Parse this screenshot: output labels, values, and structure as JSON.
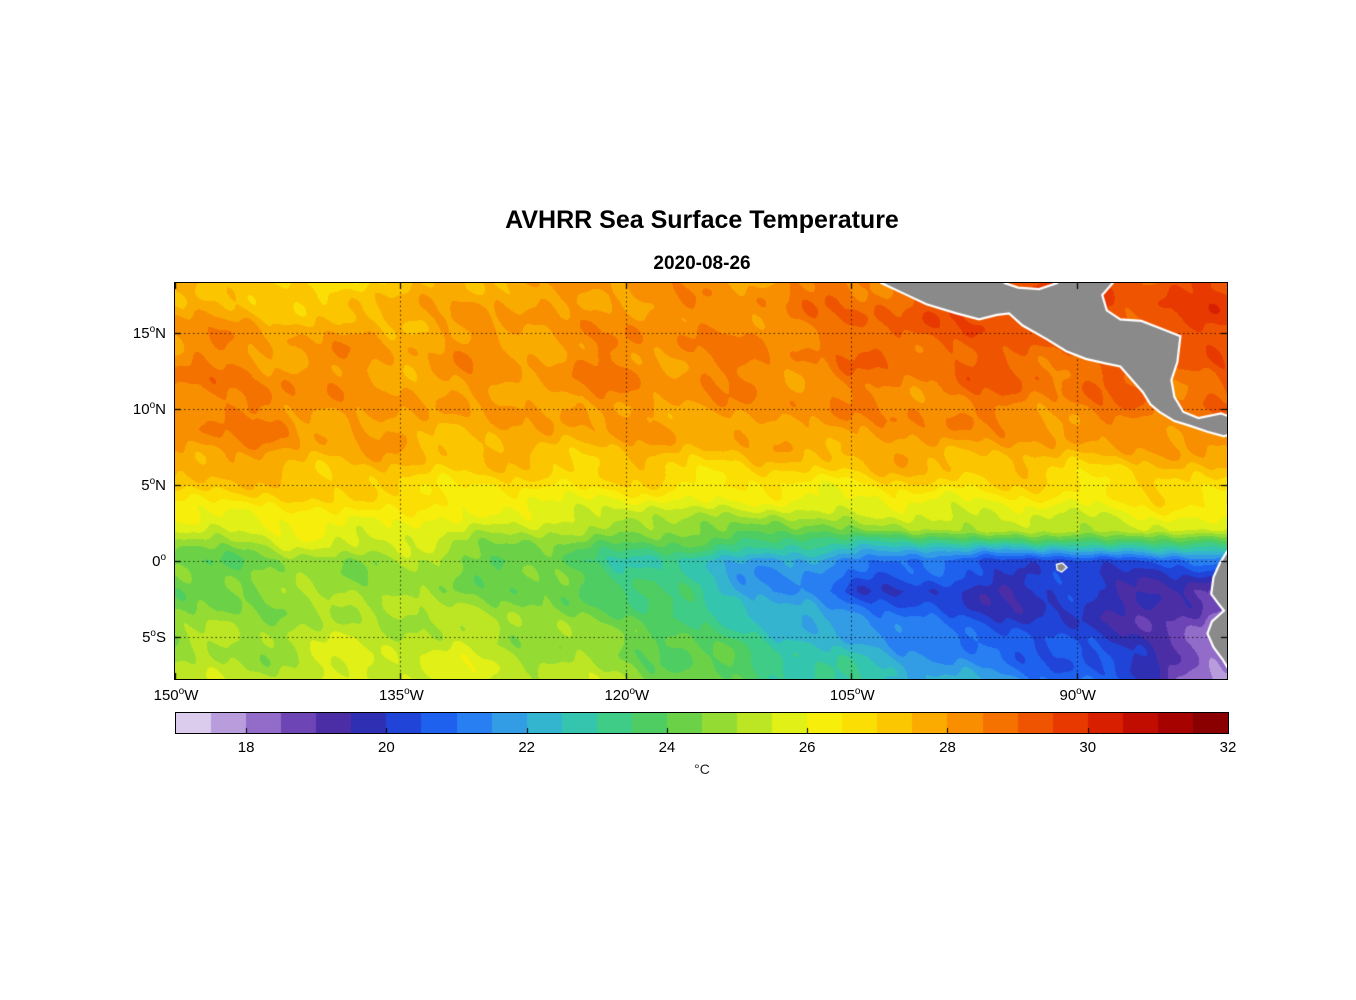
{
  "chart_data": {
    "type": "heatmap",
    "title": "AVHRR Sea Surface Temperature",
    "subtitle": "2020-08-26",
    "x_axis": {
      "range": [
        -150,
        -80
      ],
      "deg_symbol": "o",
      "label_ticks": [
        {
          "lon": -150,
          "num": "150",
          "hem": "W"
        },
        {
          "lon": -135,
          "num": "135",
          "hem": "W"
        },
        {
          "lon": -120,
          "num": "120",
          "hem": "W"
        },
        {
          "lon": -105,
          "num": "105",
          "hem": "W"
        },
        {
          "lon": -90,
          "num": "90",
          "hem": "W"
        }
      ]
    },
    "y_axis": {
      "range": [
        -7.8,
        18.3
      ],
      "deg_symbol": "o",
      "label_ticks": [
        {
          "lat": 15,
          "num": "15",
          "hem": "N"
        },
        {
          "lat": 10,
          "num": "10",
          "hem": "N"
        },
        {
          "lat": 5,
          "num": "5",
          "hem": "N"
        },
        {
          "lat": 0,
          "num": "0",
          "hem": ""
        },
        {
          "lat": -5,
          "num": "5",
          "hem": "S"
        }
      ]
    },
    "grid_lons": [
      -135,
      -120,
      -105,
      -90
    ],
    "grid_lats": [
      15,
      10,
      5,
      0,
      -5
    ],
    "colorbar": {
      "min": 17,
      "max": 32,
      "band_step": 0.5,
      "ticks": [
        18,
        20,
        22,
        24,
        26,
        28,
        30,
        32
      ],
      "label": "°C"
    },
    "colormap_stops": [
      [
        17.0,
        "#E9E1F4"
      ],
      [
        17.5,
        "#CDB4E6"
      ],
      [
        18.0,
        "#A583D2"
      ],
      [
        18.5,
        "#7F55BE"
      ],
      [
        19.0,
        "#5B34AC"
      ],
      [
        19.5,
        "#3B28A0"
      ],
      [
        20.0,
        "#2336C6"
      ],
      [
        20.5,
        "#1C52E8"
      ],
      [
        21.0,
        "#1F70F5"
      ],
      [
        21.5,
        "#2F8EEE"
      ],
      [
        22.0,
        "#35A9DC"
      ],
      [
        22.5,
        "#33C0C2"
      ],
      [
        23.0,
        "#36CA9C"
      ],
      [
        23.5,
        "#46CD72"
      ],
      [
        24.0,
        "#57CD53"
      ],
      [
        24.5,
        "#7FD73D"
      ],
      [
        25.0,
        "#A9E12A"
      ],
      [
        25.5,
        "#CFEA1C"
      ],
      [
        26.0,
        "#F3F50F"
      ],
      [
        26.5,
        "#FBE807"
      ],
      [
        27.0,
        "#FBD400"
      ],
      [
        27.5,
        "#FBB900"
      ],
      [
        28.0,
        "#FA9D00"
      ],
      [
        28.5,
        "#F78100"
      ],
      [
        29.0,
        "#F26300"
      ],
      [
        29.5,
        "#EC4700"
      ],
      [
        30.0,
        "#E22B00"
      ],
      [
        30.5,
        "#CE1400"
      ],
      [
        31.0,
        "#B40500"
      ],
      [
        31.5,
        "#970000"
      ],
      [
        32.0,
        "#7D0000"
      ]
    ],
    "sst_grid": {
      "units": "degC",
      "lons": [
        -150,
        -145,
        -140,
        -135,
        -130,
        -125,
        -120,
        -115,
        -110,
        -105,
        -100,
        -95,
        -90,
        -85,
        -80
      ],
      "lats": [
        18.3,
        16,
        14,
        12,
        10,
        8,
        6,
        4,
        2,
        0,
        -2,
        -4,
        -6,
        -7.8
      ],
      "values": [
        [
          27.6,
          27.0,
          26.5,
          27.4,
          27.8,
          28.0,
          28.1,
          28.0,
          28.3,
          28.7,
          29.1,
          29.4,
          29.6,
          29.5,
          29.4
        ],
        [
          27.9,
          27.8,
          27.4,
          27.8,
          28.0,
          28.0,
          28.2,
          28.4,
          28.4,
          28.9,
          29.2,
          29.4,
          29.3,
          29.4,
          29.5
        ],
        [
          28.2,
          28.3,
          28.0,
          28.0,
          28.0,
          28.2,
          28.3,
          28.5,
          28.4,
          28.7,
          29.0,
          29.1,
          29.0,
          29.2,
          29.3
        ],
        [
          28.5,
          28.4,
          28.2,
          28.0,
          28.1,
          28.2,
          28.5,
          28.3,
          28.5,
          28.5,
          28.7,
          29.0,
          28.8,
          29.0,
          29.1
        ],
        [
          28.4,
          28.6,
          28.2,
          28.0,
          27.9,
          28.0,
          28.2,
          28.0,
          28.2,
          28.3,
          28.5,
          28.5,
          28.5,
          28.7,
          28.9
        ],
        [
          28.6,
          28.3,
          28.0,
          27.8,
          27.6,
          27.8,
          27.8,
          27.8,
          27.8,
          28.0,
          28.2,
          28.0,
          27.9,
          28.2,
          28.4
        ],
        [
          27.8,
          27.6,
          27.5,
          27.3,
          27.1,
          27.0,
          27.2,
          27.0,
          27.0,
          27.2,
          27.4,
          27.3,
          27.0,
          27.2,
          27.5
        ],
        [
          26.6,
          26.8,
          27.0,
          26.5,
          26.3,
          26.2,
          26.1,
          26.0,
          25.9,
          26.0,
          26.2,
          26.3,
          26.2,
          26.5,
          26.7
        ],
        [
          25.2,
          25.6,
          26.0,
          26.0,
          25.5,
          25.0,
          24.6,
          24.5,
          24.3,
          24.5,
          24.8,
          25.0,
          25.2,
          25.5,
          25.9
        ],
        [
          24.0,
          24.4,
          24.8,
          24.8,
          24.3,
          23.9,
          23.3,
          22.6,
          21.8,
          21.2,
          20.9,
          20.6,
          20.3,
          20.6,
          21.0
        ],
        [
          24.2,
          24.5,
          24.8,
          24.8,
          24.6,
          24.2,
          23.6,
          22.8,
          21.5,
          20.6,
          20.0,
          19.7,
          19.8,
          19.6,
          18.6
        ],
        [
          24.5,
          24.8,
          25.0,
          25.2,
          25.0,
          24.7,
          24.2,
          23.4,
          22.4,
          21.6,
          20.8,
          20.2,
          20.0,
          19.3,
          17.8
        ],
        [
          24.8,
          25.0,
          25.3,
          25.5,
          25.3,
          25.0,
          24.5,
          23.9,
          23.1,
          22.3,
          21.6,
          20.9,
          20.5,
          19.6,
          17.4
        ],
        [
          25.1,
          25.2,
          25.5,
          25.8,
          25.5,
          25.2,
          24.8,
          24.3,
          23.5,
          22.8,
          22.1,
          21.4,
          21.0,
          19.9,
          17.6
        ]
      ]
    },
    "land": {
      "fill": "#8a8a8a",
      "coast": "#ffffff",
      "polygons": {
        "central_america": [
          [
            -104,
            19.5
          ],
          [
            -103,
            18.3
          ],
          [
            -101.5,
            17.6
          ],
          [
            -100,
            16.9
          ],
          [
            -98,
            16.3
          ],
          [
            -96.5,
            15.9
          ],
          [
            -95.3,
            16.2
          ],
          [
            -94.5,
            16.3
          ],
          [
            -93.6,
            15.5
          ],
          [
            -92,
            14.6
          ],
          [
            -90.7,
            13.8
          ],
          [
            -89.4,
            13.3
          ],
          [
            -88.1,
            13.0
          ],
          [
            -87.1,
            12.8
          ],
          [
            -86.4,
            12.0
          ],
          [
            -85.6,
            11.1
          ],
          [
            -85.1,
            10.3
          ],
          [
            -84.5,
            9.8
          ],
          [
            -83.5,
            9.2
          ],
          [
            -82.5,
            8.9
          ],
          [
            -81.3,
            8.5
          ],
          [
            -80.2,
            8.2
          ],
          [
            -79.4,
            8.5
          ],
          [
            -79.0,
            9.2
          ],
          [
            -80.4,
            9.7
          ],
          [
            -81.9,
            9.4
          ],
          [
            -82.9,
            9.8
          ],
          [
            -83.5,
            10.8
          ],
          [
            -83.7,
            11.9
          ],
          [
            -83.3,
            13.1
          ],
          [
            -83.1,
            14.8
          ],
          [
            -84.4,
            15.3
          ],
          [
            -85.7,
            15.8
          ],
          [
            -87.1,
            15.9
          ],
          [
            -88.0,
            16.5
          ],
          [
            -88.3,
            17.5
          ],
          [
            -87.6,
            18.3
          ],
          [
            -87.8,
            19.5
          ],
          [
            -90.5,
            19.5
          ],
          [
            -91.3,
            18.3
          ],
          [
            -92.5,
            17.9
          ],
          [
            -93.9,
            18.0
          ],
          [
            -94.8,
            18.3
          ],
          [
            -95.6,
            19.5
          ]
        ],
        "south_america": [
          [
            -80.0,
            0.6
          ],
          [
            -80.5,
            -0.2
          ],
          [
            -80.9,
            -1.1
          ],
          [
            -81.05,
            -2.2
          ],
          [
            -80.6,
            -2.8
          ],
          [
            -80.2,
            -3.3
          ],
          [
            -81.0,
            -4.0
          ],
          [
            -81.3,
            -4.8
          ],
          [
            -80.9,
            -5.7
          ],
          [
            -80.3,
            -6.5
          ],
          [
            -79.8,
            -7.3
          ],
          [
            -79.3,
            -8.5
          ],
          [
            -77.0,
            -8.5
          ],
          [
            -77.0,
            0.6
          ]
        ],
        "galapagos_islands": [
          [
            -91.35,
            -0.25
          ],
          [
            -90.95,
            -0.15
          ],
          [
            -90.65,
            -0.45
          ],
          [
            -91.0,
            -0.75
          ],
          [
            -91.3,
            -0.6
          ]
        ]
      }
    }
  }
}
